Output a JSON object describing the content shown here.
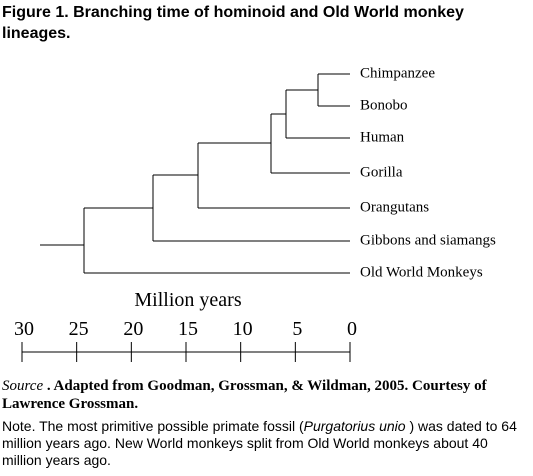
{
  "title": "Figure 1. Branching time of hominoid and Old World monkey lineages.",
  "tree": {
    "leaves": [
      "Chimpanzee",
      "Bonobo",
      "Human",
      "Gorilla",
      "Orangutans",
      "Gibbons and siamangs",
      "Old World Monkeys"
    ]
  },
  "axis": {
    "label": "Million years",
    "ticks": [
      30,
      25,
      20,
      15,
      10,
      5,
      0
    ]
  },
  "source": {
    "label": "Source",
    "text": ". Adapted from Goodman, Grossman, & Wildman, 2005. Courtesy of Lawrence Grossman."
  },
  "note": {
    "before": "Note. The most primitive possible primate fossil (",
    "species": "Purgatorius unio",
    "after": " ) was dated to 64 million years ago. New World monkeys split from Old World monkeys about 40 million years ago."
  }
}
